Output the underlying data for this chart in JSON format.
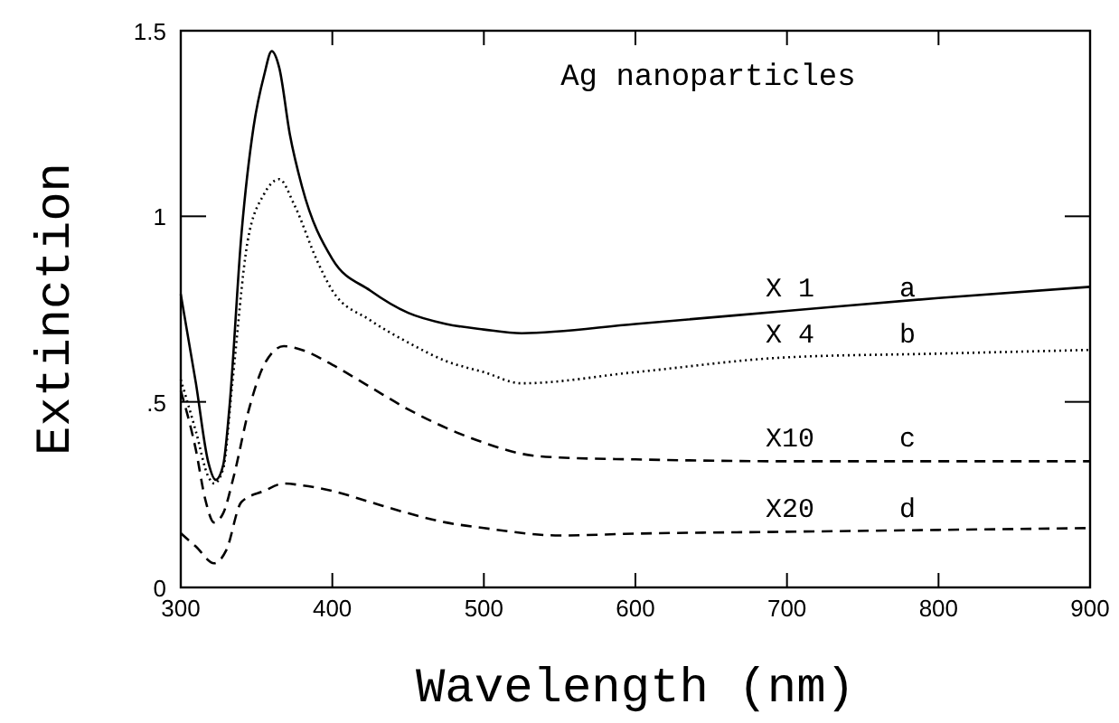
{
  "chart_data": {
    "type": "line",
    "xlabel": "Wavelength (nm)",
    "ylabel": "Extinction",
    "xlim": [
      300,
      900
    ],
    "xticks": [
      300,
      400,
      500,
      600,
      700,
      800,
      900
    ],
    "ylim": [
      0,
      1.5
    ],
    "yticks": [
      0,
      {
        "value": 0.5,
        "label": ".5"
      },
      1,
      1.5
    ],
    "grid": false,
    "series": [
      {
        "name": "X 1",
        "color": "#000000",
        "line_style": "solid",
        "x": [
          300,
          310,
          318,
          323,
          328,
          332,
          340,
          348,
          355,
          360,
          365,
          372,
          380,
          400,
          425,
          450,
          475,
          500,
          525,
          600,
          700,
          800,
          900
        ],
        "values": [
          0.79,
          0.55,
          0.34,
          0.29,
          0.33,
          0.48,
          0.95,
          1.24,
          1.38,
          1.445,
          1.4,
          1.22,
          1.08,
          0.885,
          0.8,
          0.74,
          0.71,
          0.695,
          0.685,
          0.71,
          0.745,
          0.78,
          0.81
        ]
      },
      {
        "name": "X 4",
        "color": "#000000",
        "line_style": "dotted",
        "x": [
          300,
          310,
          318,
          322,
          328,
          334,
          344,
          355,
          365,
          375,
          390,
          400,
          425,
          450,
          475,
          500,
          525,
          600,
          700,
          800,
          900
        ],
        "values": [
          0.56,
          0.42,
          0.3,
          0.28,
          0.32,
          0.55,
          0.93,
          1.06,
          1.1,
          1.03,
          0.88,
          0.8,
          0.72,
          0.66,
          0.61,
          0.58,
          0.55,
          0.58,
          0.62,
          0.63,
          0.64
        ]
      },
      {
        "name": "X10",
        "color": "#000000",
        "line_style": "dashed",
        "x": [
          300,
          310,
          316,
          322,
          328,
          335,
          345,
          355,
          368,
          380,
          400,
          425,
          450,
          475,
          500,
          525,
          550,
          600,
          700,
          800,
          900
        ],
        "values": [
          0.53,
          0.37,
          0.24,
          0.175,
          0.2,
          0.3,
          0.48,
          0.6,
          0.65,
          0.64,
          0.6,
          0.54,
          0.48,
          0.43,
          0.39,
          0.36,
          0.35,
          0.345,
          0.34,
          0.34,
          0.34
        ]
      },
      {
        "name": "X20",
        "color": "#000000",
        "line_style": "dashed",
        "x": [
          300,
          310,
          322,
          330,
          340,
          355,
          368,
          380,
          400,
          425,
          450,
          475,
          500,
          550,
          600,
          700,
          800,
          900
        ],
        "values": [
          0.146,
          0.11,
          0.065,
          0.1,
          0.23,
          0.26,
          0.28,
          0.275,
          0.26,
          0.23,
          0.2,
          0.175,
          0.16,
          0.14,
          0.145,
          0.15,
          0.155,
          0.16
        ]
      }
    ],
    "annotations": [
      "Ag nanoparticles",
      "a",
      "b",
      "c",
      "d"
    ]
  }
}
